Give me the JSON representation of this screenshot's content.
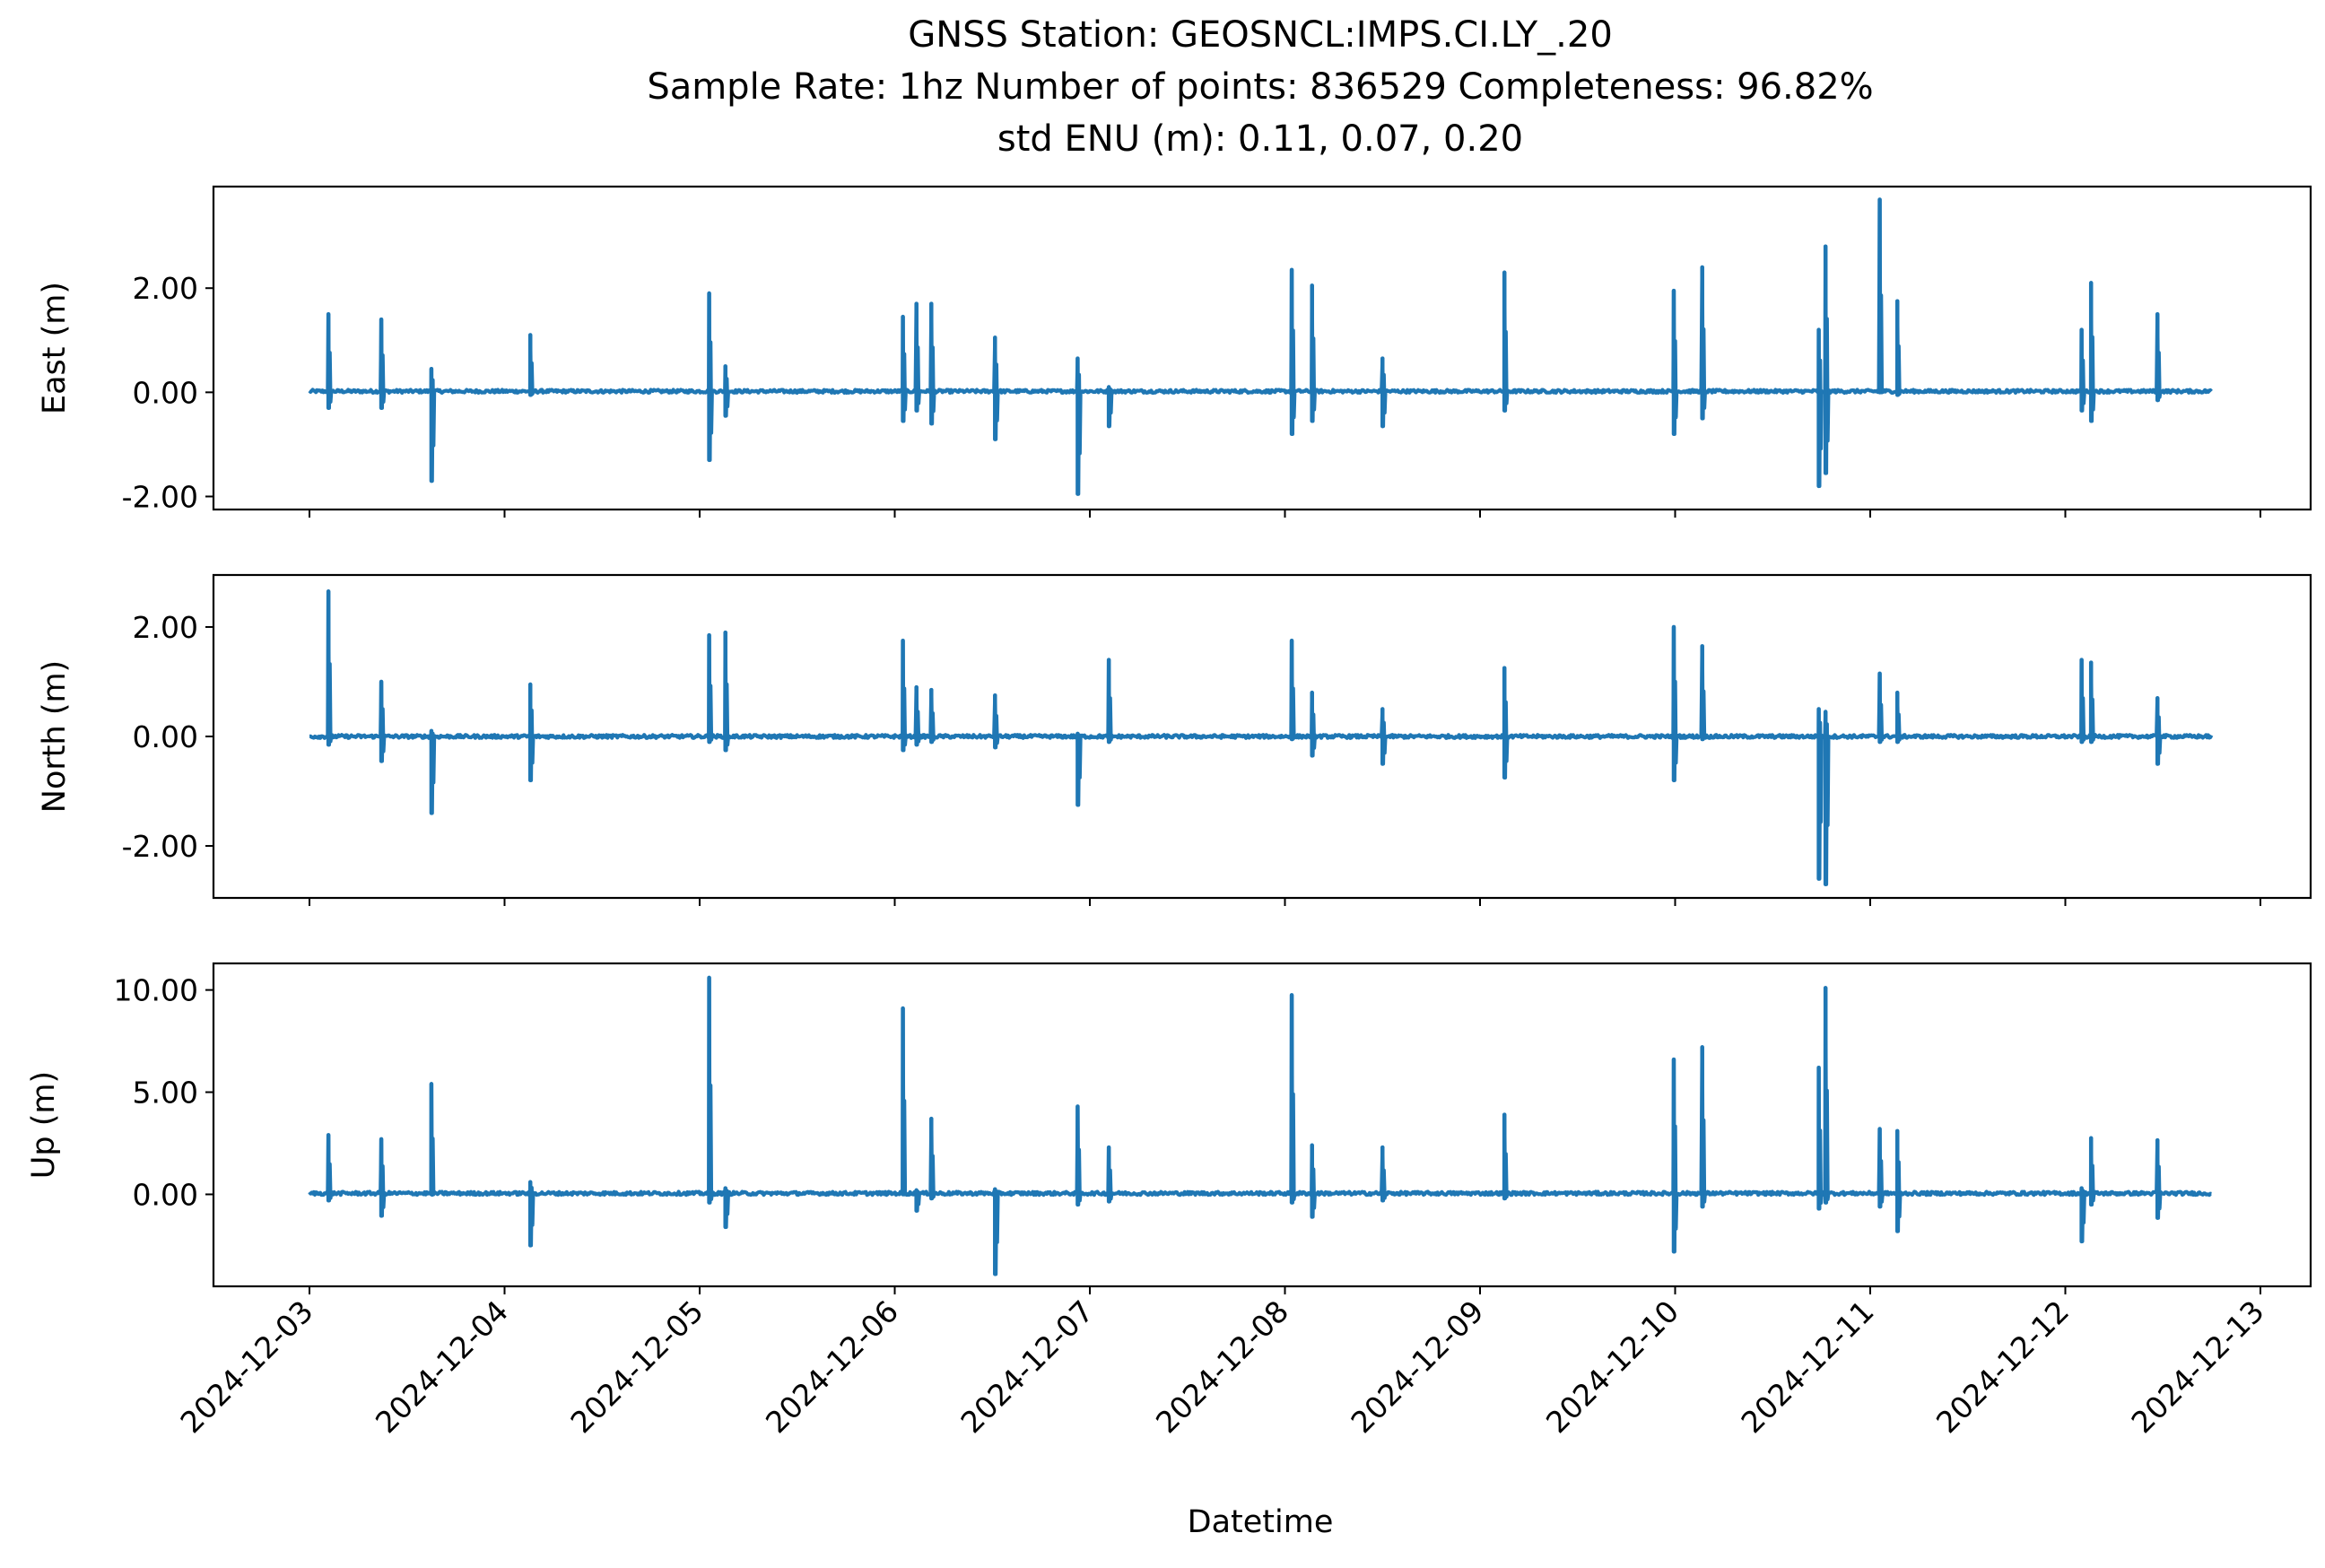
{
  "title_lines": [
    "GNSS Station: GEOSNCL:IMPS.CI.LY_.20",
    "Sample Rate: 1hz   Number of points: 836529    Completeness:  96.82%",
    "std ENU (m):  0.11, 0.07, 0.20"
  ],
  "line_color": "#1f77b4",
  "chart_data": [
    {
      "type": "line",
      "ylabel": "East (m)",
      "xlabel": "",
      "ylim": [
        -2.25,
        3.95
      ],
      "yticks": [
        -2,
        0,
        2
      ],
      "ytick_labels": [
        "-2.00",
        "0.00",
        "2.00"
      ],
      "x_range": [
        "2024-12-03 00:00",
        "2024-12-12 18:00"
      ],
      "baseline": 0.02,
      "noise": 0.03,
      "spikes": [
        {
          "x": "2024-12-03 02:20",
          "min": -0.3,
          "max": 1.5
        },
        {
          "x": "2024-12-03 08:50",
          "min": -0.3,
          "max": 1.4
        },
        {
          "x": "2024-12-03 15:00",
          "min": -1.7,
          "max": 0.45
        },
        {
          "x": "2024-12-04 03:10",
          "min": -0.05,
          "max": 1.1
        },
        {
          "x": "2024-12-05 01:10",
          "min": -1.3,
          "max": 1.9
        },
        {
          "x": "2024-12-05 03:10",
          "min": -0.45,
          "max": 0.5
        },
        {
          "x": "2024-12-06 01:00",
          "min": -0.55,
          "max": 1.45
        },
        {
          "x": "2024-12-06 02:40",
          "min": -0.35,
          "max": 1.7
        },
        {
          "x": "2024-12-06 04:30",
          "min": -0.6,
          "max": 1.7
        },
        {
          "x": "2024-12-06 12:20",
          "min": -0.9,
          "max": 1.05
        },
        {
          "x": "2024-12-06 22:30",
          "min": -1.95,
          "max": 0.65
        },
        {
          "x": "2024-12-07 02:20",
          "min": -0.65,
          "max": 0.1
        },
        {
          "x": "2024-12-08 00:50",
          "min": -0.8,
          "max": 2.35
        },
        {
          "x": "2024-12-08 03:20",
          "min": -0.55,
          "max": 2.05
        },
        {
          "x": "2024-12-08 12:00",
          "min": -0.65,
          "max": 0.65
        },
        {
          "x": "2024-12-09 03:00",
          "min": -0.35,
          "max": 2.3
        },
        {
          "x": "2024-12-09 23:50",
          "min": -0.8,
          "max": 1.95
        },
        {
          "x": "2024-12-10 03:20",
          "min": -0.5,
          "max": 2.4
        },
        {
          "x": "2024-12-10 17:40",
          "min": -1.8,
          "max": 1.2
        },
        {
          "x": "2024-12-10 18:30",
          "min": -1.55,
          "max": 2.8
        },
        {
          "x": "2024-12-11 01:10",
          "min": 0.0,
          "max": 3.7
        },
        {
          "x": "2024-12-11 03:20",
          "min": -0.05,
          "max": 1.75
        },
        {
          "x": "2024-12-12 02:00",
          "min": -0.35,
          "max": 1.2
        },
        {
          "x": "2024-12-12 03:10",
          "min": -0.55,
          "max": 2.1
        },
        {
          "x": "2024-12-12 11:20",
          "min": -0.15,
          "max": 1.5
        }
      ]
    },
    {
      "type": "line",
      "ylabel": "North (m)",
      "xlabel": "",
      "ylim": [
        -2.95,
        2.95
      ],
      "yticks": [
        -2,
        0,
        2
      ],
      "ytick_labels": [
        "-2.00",
        "0.00",
        "2.00"
      ],
      "x_range": [
        "2024-12-03 00:00",
        "2024-12-12 18:00"
      ],
      "baseline": 0.0,
      "noise": 0.03,
      "spikes": [
        {
          "x": "2024-12-03 02:20",
          "min": -0.15,
          "max": 2.65
        },
        {
          "x": "2024-12-03 08:50",
          "min": -0.45,
          "max": 1.0
        },
        {
          "x": "2024-12-03 15:00",
          "min": -1.4,
          "max": 0.1
        },
        {
          "x": "2024-12-04 03:10",
          "min": -0.8,
          "max": 0.95
        },
        {
          "x": "2024-12-05 01:10",
          "min": -0.1,
          "max": 1.85
        },
        {
          "x": "2024-12-05 03:10",
          "min": -0.25,
          "max": 1.9
        },
        {
          "x": "2024-12-06 01:00",
          "min": -0.25,
          "max": 1.75
        },
        {
          "x": "2024-12-06 02:40",
          "min": -0.15,
          "max": 0.9
        },
        {
          "x": "2024-12-06 04:30",
          "min": -0.1,
          "max": 0.85
        },
        {
          "x": "2024-12-06 12:20",
          "min": -0.2,
          "max": 0.75
        },
        {
          "x": "2024-12-06 22:30",
          "min": -1.25,
          "max": 0.05
        },
        {
          "x": "2024-12-07 02:20",
          "min": -0.1,
          "max": 1.4
        },
        {
          "x": "2024-12-08 00:50",
          "min": -0.05,
          "max": 1.75
        },
        {
          "x": "2024-12-08 03:20",
          "min": -0.35,
          "max": 0.8
        },
        {
          "x": "2024-12-08 12:00",
          "min": -0.5,
          "max": 0.5
        },
        {
          "x": "2024-12-09 03:00",
          "min": -0.75,
          "max": 1.25
        },
        {
          "x": "2024-12-09 23:50",
          "min": -0.8,
          "max": 2.0
        },
        {
          "x": "2024-12-10 03:20",
          "min": -0.05,
          "max": 1.65
        },
        {
          "x": "2024-12-10 17:40",
          "min": -2.6,
          "max": 0.5
        },
        {
          "x": "2024-12-10 18:30",
          "min": -2.7,
          "max": 0.45
        },
        {
          "x": "2024-12-11 01:10",
          "min": -0.1,
          "max": 1.15
        },
        {
          "x": "2024-12-11 03:20",
          "min": -0.1,
          "max": 0.8
        },
        {
          "x": "2024-12-12 02:00",
          "min": -0.1,
          "max": 1.4
        },
        {
          "x": "2024-12-12 03:10",
          "min": -0.1,
          "max": 1.35
        },
        {
          "x": "2024-12-12 11:20",
          "min": -0.5,
          "max": 0.7
        }
      ]
    },
    {
      "type": "line",
      "ylabel": "Up (m)",
      "xlabel": "Datetime",
      "ylim": [
        -4.5,
        11.3
      ],
      "yticks": [
        0,
        5,
        10
      ],
      "ytick_labels": [
        "0.00",
        "5.00",
        "10.00"
      ],
      "x_range": [
        "2024-12-03 00:00",
        "2024-12-12 18:00"
      ],
      "xticks": [
        "2024-12-03",
        "2024-12-04",
        "2024-12-05",
        "2024-12-06",
        "2024-12-07",
        "2024-12-08",
        "2024-12-09",
        "2024-12-10",
        "2024-12-11",
        "2024-12-12",
        "2024-12-13"
      ],
      "baseline": 0.05,
      "noise": 0.08,
      "spikes": [
        {
          "x": "2024-12-03 02:20",
          "min": -0.3,
          "max": 2.9
        },
        {
          "x": "2024-12-03 08:50",
          "min": -1.05,
          "max": 2.7
        },
        {
          "x": "2024-12-03 15:00",
          "min": 0.0,
          "max": 5.4
        },
        {
          "x": "2024-12-04 03:10",
          "min": -2.5,
          "max": 0.6
        },
        {
          "x": "2024-12-05 01:10",
          "min": -0.4,
          "max": 10.6
        },
        {
          "x": "2024-12-05 03:10",
          "min": -1.6,
          "max": 0.3
        },
        {
          "x": "2024-12-06 01:00",
          "min": 0.0,
          "max": 9.1
        },
        {
          "x": "2024-12-06 02:40",
          "min": -0.8,
          "max": 0.2
        },
        {
          "x": "2024-12-06 04:30",
          "min": -0.2,
          "max": 3.7
        },
        {
          "x": "2024-12-06 12:20",
          "min": -3.9,
          "max": 0.25
        },
        {
          "x": "2024-12-06 22:30",
          "min": -0.5,
          "max": 4.3
        },
        {
          "x": "2024-12-07 02:20",
          "min": -0.35,
          "max": 2.3
        },
        {
          "x": "2024-12-08 00:50",
          "min": -0.4,
          "max": 9.75
        },
        {
          "x": "2024-12-08 03:20",
          "min": -1.1,
          "max": 2.4
        },
        {
          "x": "2024-12-08 12:00",
          "min": -0.3,
          "max": 2.3
        },
        {
          "x": "2024-12-09 03:00",
          "min": -0.2,
          "max": 3.9
        },
        {
          "x": "2024-12-09 23:50",
          "min": -2.8,
          "max": 6.6
        },
        {
          "x": "2024-12-10 03:20",
          "min": -0.6,
          "max": 7.2
        },
        {
          "x": "2024-12-10 17:40",
          "min": -0.7,
          "max": 6.2
        },
        {
          "x": "2024-12-10 18:30",
          "min": -0.4,
          "max": 10.1
        },
        {
          "x": "2024-12-11 01:10",
          "min": -0.6,
          "max": 3.2
        },
        {
          "x": "2024-12-11 03:20",
          "min": -1.8,
          "max": 3.1
        },
        {
          "x": "2024-12-12 02:00",
          "min": -2.3,
          "max": 0.3
        },
        {
          "x": "2024-12-12 03:10",
          "min": -0.5,
          "max": 2.75
        },
        {
          "x": "2024-12-12 11:20",
          "min": -1.15,
          "max": 2.65
        }
      ]
    }
  ]
}
